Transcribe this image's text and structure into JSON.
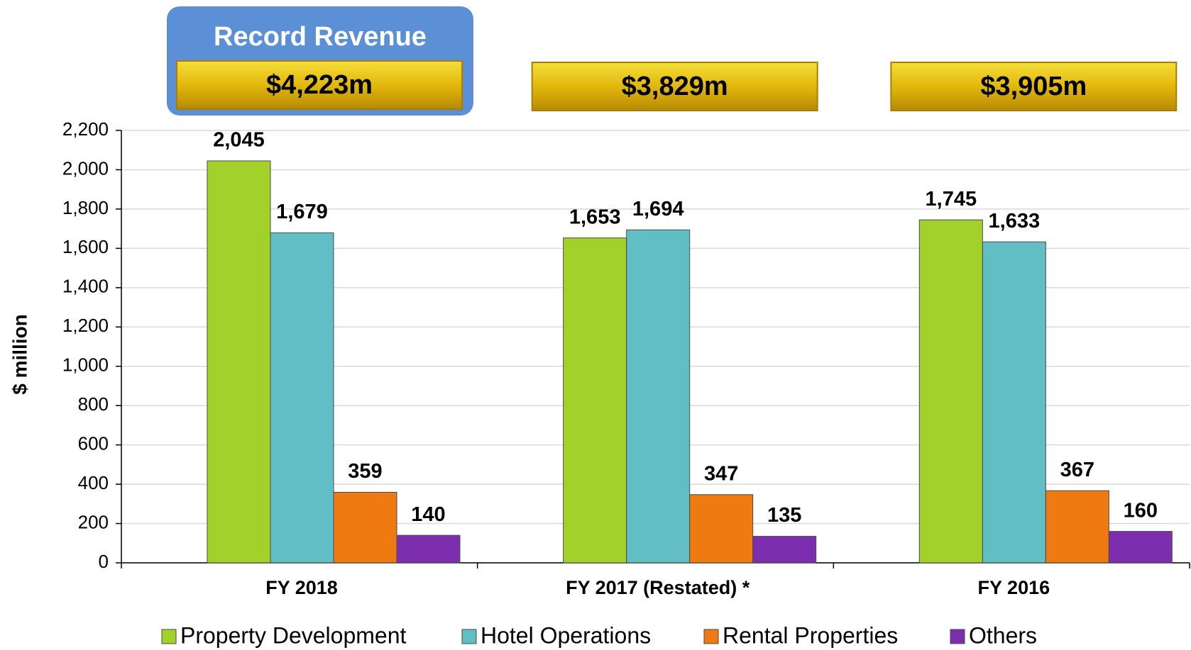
{
  "chart_data": {
    "type": "bar",
    "annotation": "Record Revenue",
    "totals": [
      "$4,223m",
      "$3,829m",
      "$3,905m"
    ],
    "y_label": "$ million",
    "categories": [
      "FY 2018",
      "FY 2017 (Restated) *",
      "FY 2016"
    ],
    "series": [
      {
        "name": "Property Development",
        "color": "#a2d12b",
        "values": [
          2045,
          1653,
          1745
        ],
        "value_labels": [
          "2,045",
          "1,653",
          "1,745"
        ]
      },
      {
        "name": "Hotel Operations",
        "color": "#60bec4",
        "values": [
          1679,
          1694,
          1633
        ],
        "value_labels": [
          "1,679",
          "1,694",
          "1,633"
        ]
      },
      {
        "name": "Rental Properties",
        "color": "#f07a12",
        "values": [
          359,
          347,
          367
        ],
        "value_labels": [
          "359",
          "347",
          "367"
        ]
      },
      {
        "name": "Others",
        "color": "#7b2fae",
        "values": [
          140,
          135,
          160
        ],
        "value_labels": [
          "140",
          "135",
          "160"
        ]
      }
    ],
    "ylim": [
      0,
      2200
    ],
    "yticks": [
      0,
      {
        "value": 200,
        "label": "200"
      },
      400,
      600,
      800,
      {
        "value": 1000,
        "label": "1,000"
      },
      {
        "value": 1200,
        "label": "1,200"
      },
      {
        "value": 1400,
        "label": "1,400"
      },
      {
        "value": 1600,
        "label": "1,600"
      },
      {
        "value": 1800,
        "label": "1,800"
      },
      {
        "value": 2000,
        "label": "2,000"
      },
      {
        "value": 2200,
        "label": "2,200"
      }
    ],
    "grid": true
  }
}
